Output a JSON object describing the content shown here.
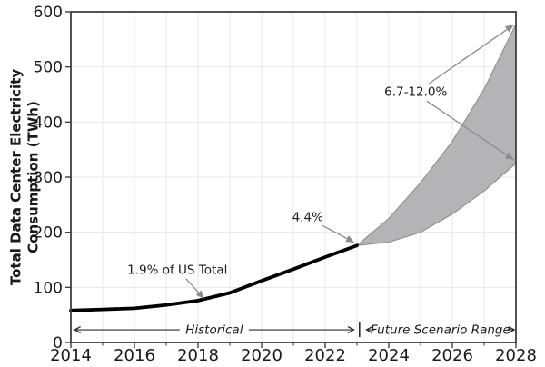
{
  "chart_data": {
    "type": "line",
    "title": "",
    "xlabel": "",
    "ylabel_lines": [
      "Total Data Center Electricity",
      "Consumption (TWh)"
    ],
    "xlim": [
      2014,
      2028
    ],
    "ylim": [
      0,
      600
    ],
    "grid": true,
    "legend": "none",
    "x_axis": {
      "major_ticks": [
        2014,
        2016,
        2018,
        2020,
        2022,
        2024,
        2026,
        2028
      ],
      "minor_ticks": [
        2015,
        2017,
        2019,
        2021,
        2023,
        2025,
        2027
      ]
    },
    "y_axis": {
      "major_ticks": [
        0,
        100,
        200,
        300,
        400,
        500,
        600
      ]
    },
    "series": [
      {
        "name": "historical-consumption",
        "label": "Historical",
        "type": "line",
        "x": [
          2014,
          2015,
          2016,
          2017,
          2018,
          2019,
          2020,
          2021,
          2022,
          2023
        ],
        "y": [
          58,
          60,
          62,
          68,
          76,
          90,
          112,
          133,
          155,
          176
        ]
      }
    ],
    "band": {
      "name": "future-scenario-range",
      "label": "Future Scenario Range",
      "x": [
        2023,
        2024,
        2025,
        2026,
        2027,
        2028
      ],
      "upper": [
        176,
        225,
        290,
        365,
        460,
        578
      ],
      "lower": [
        176,
        182,
        200,
        233,
        275,
        325
      ]
    },
    "annotations": [
      {
        "text": "1.9% of US Total",
        "x": 2017.35,
        "y": 132,
        "arrows": [
          {
            "from": [
              2017.62,
              116
            ],
            "to": [
              2018.18,
              80
            ]
          }
        ]
      },
      {
        "text": "4.4%",
        "x": 2021.45,
        "y": 228,
        "arrows": [
          {
            "from": [
              2021.92,
              212
            ],
            "to": [
              2022.9,
              182
            ]
          }
        ]
      },
      {
        "text": "6.7-12.0%",
        "x": 2024.85,
        "y": 455,
        "arrows": [
          {
            "from": [
              2025.27,
              470
            ],
            "to": [
              2027.92,
              576
            ]
          },
          {
            "from": [
              2025.2,
              438
            ],
            "to": [
              2027.92,
              332
            ]
          }
        ]
      }
    ],
    "span_annotations": [
      {
        "label": "Historical",
        "from": 2014.12,
        "to": 2022.9,
        "y": 23
      },
      {
        "label": "Future Scenario Range",
        "from": 2023.3,
        "to": 2027.95,
        "y": 23
      }
    ],
    "divider": {
      "x": 2023.08,
      "y": 23
    },
    "colors": {
      "line": "#000000",
      "band_fill": "#b4b4b7",
      "band_edge": "#8e8e92",
      "arrow": "#8c8c8c",
      "grid": "#e7e7e7",
      "spine": "#3f3f3f",
      "span_arrow": "#2b2b2b",
      "text": "#1a1a1a"
    }
  }
}
